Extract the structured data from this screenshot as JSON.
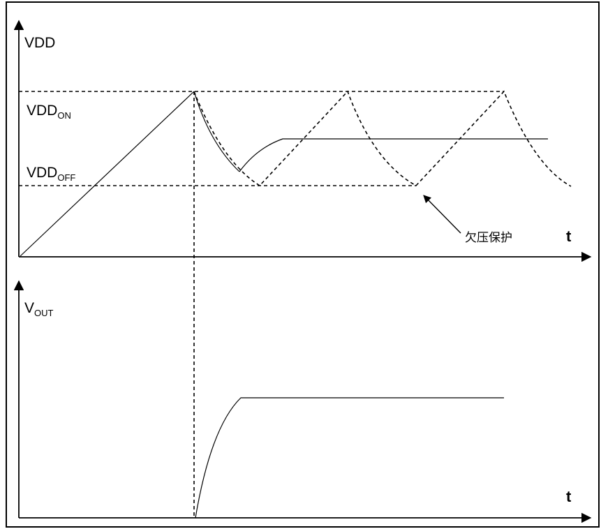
{
  "top_plot": {
    "y_label": "VDD",
    "vdd_on_main": "VDD",
    "vdd_on_sub": "ON",
    "vdd_off_main": "VDD",
    "vdd_off_sub": "OFF",
    "annotation": "欠压保护",
    "x_label": "t"
  },
  "bottom_plot": {
    "y_label_main": "V",
    "y_label_sub": "OUT",
    "x_label": "t"
  },
  "colors": {
    "line": "#000000",
    "background": "#ffffff"
  }
}
